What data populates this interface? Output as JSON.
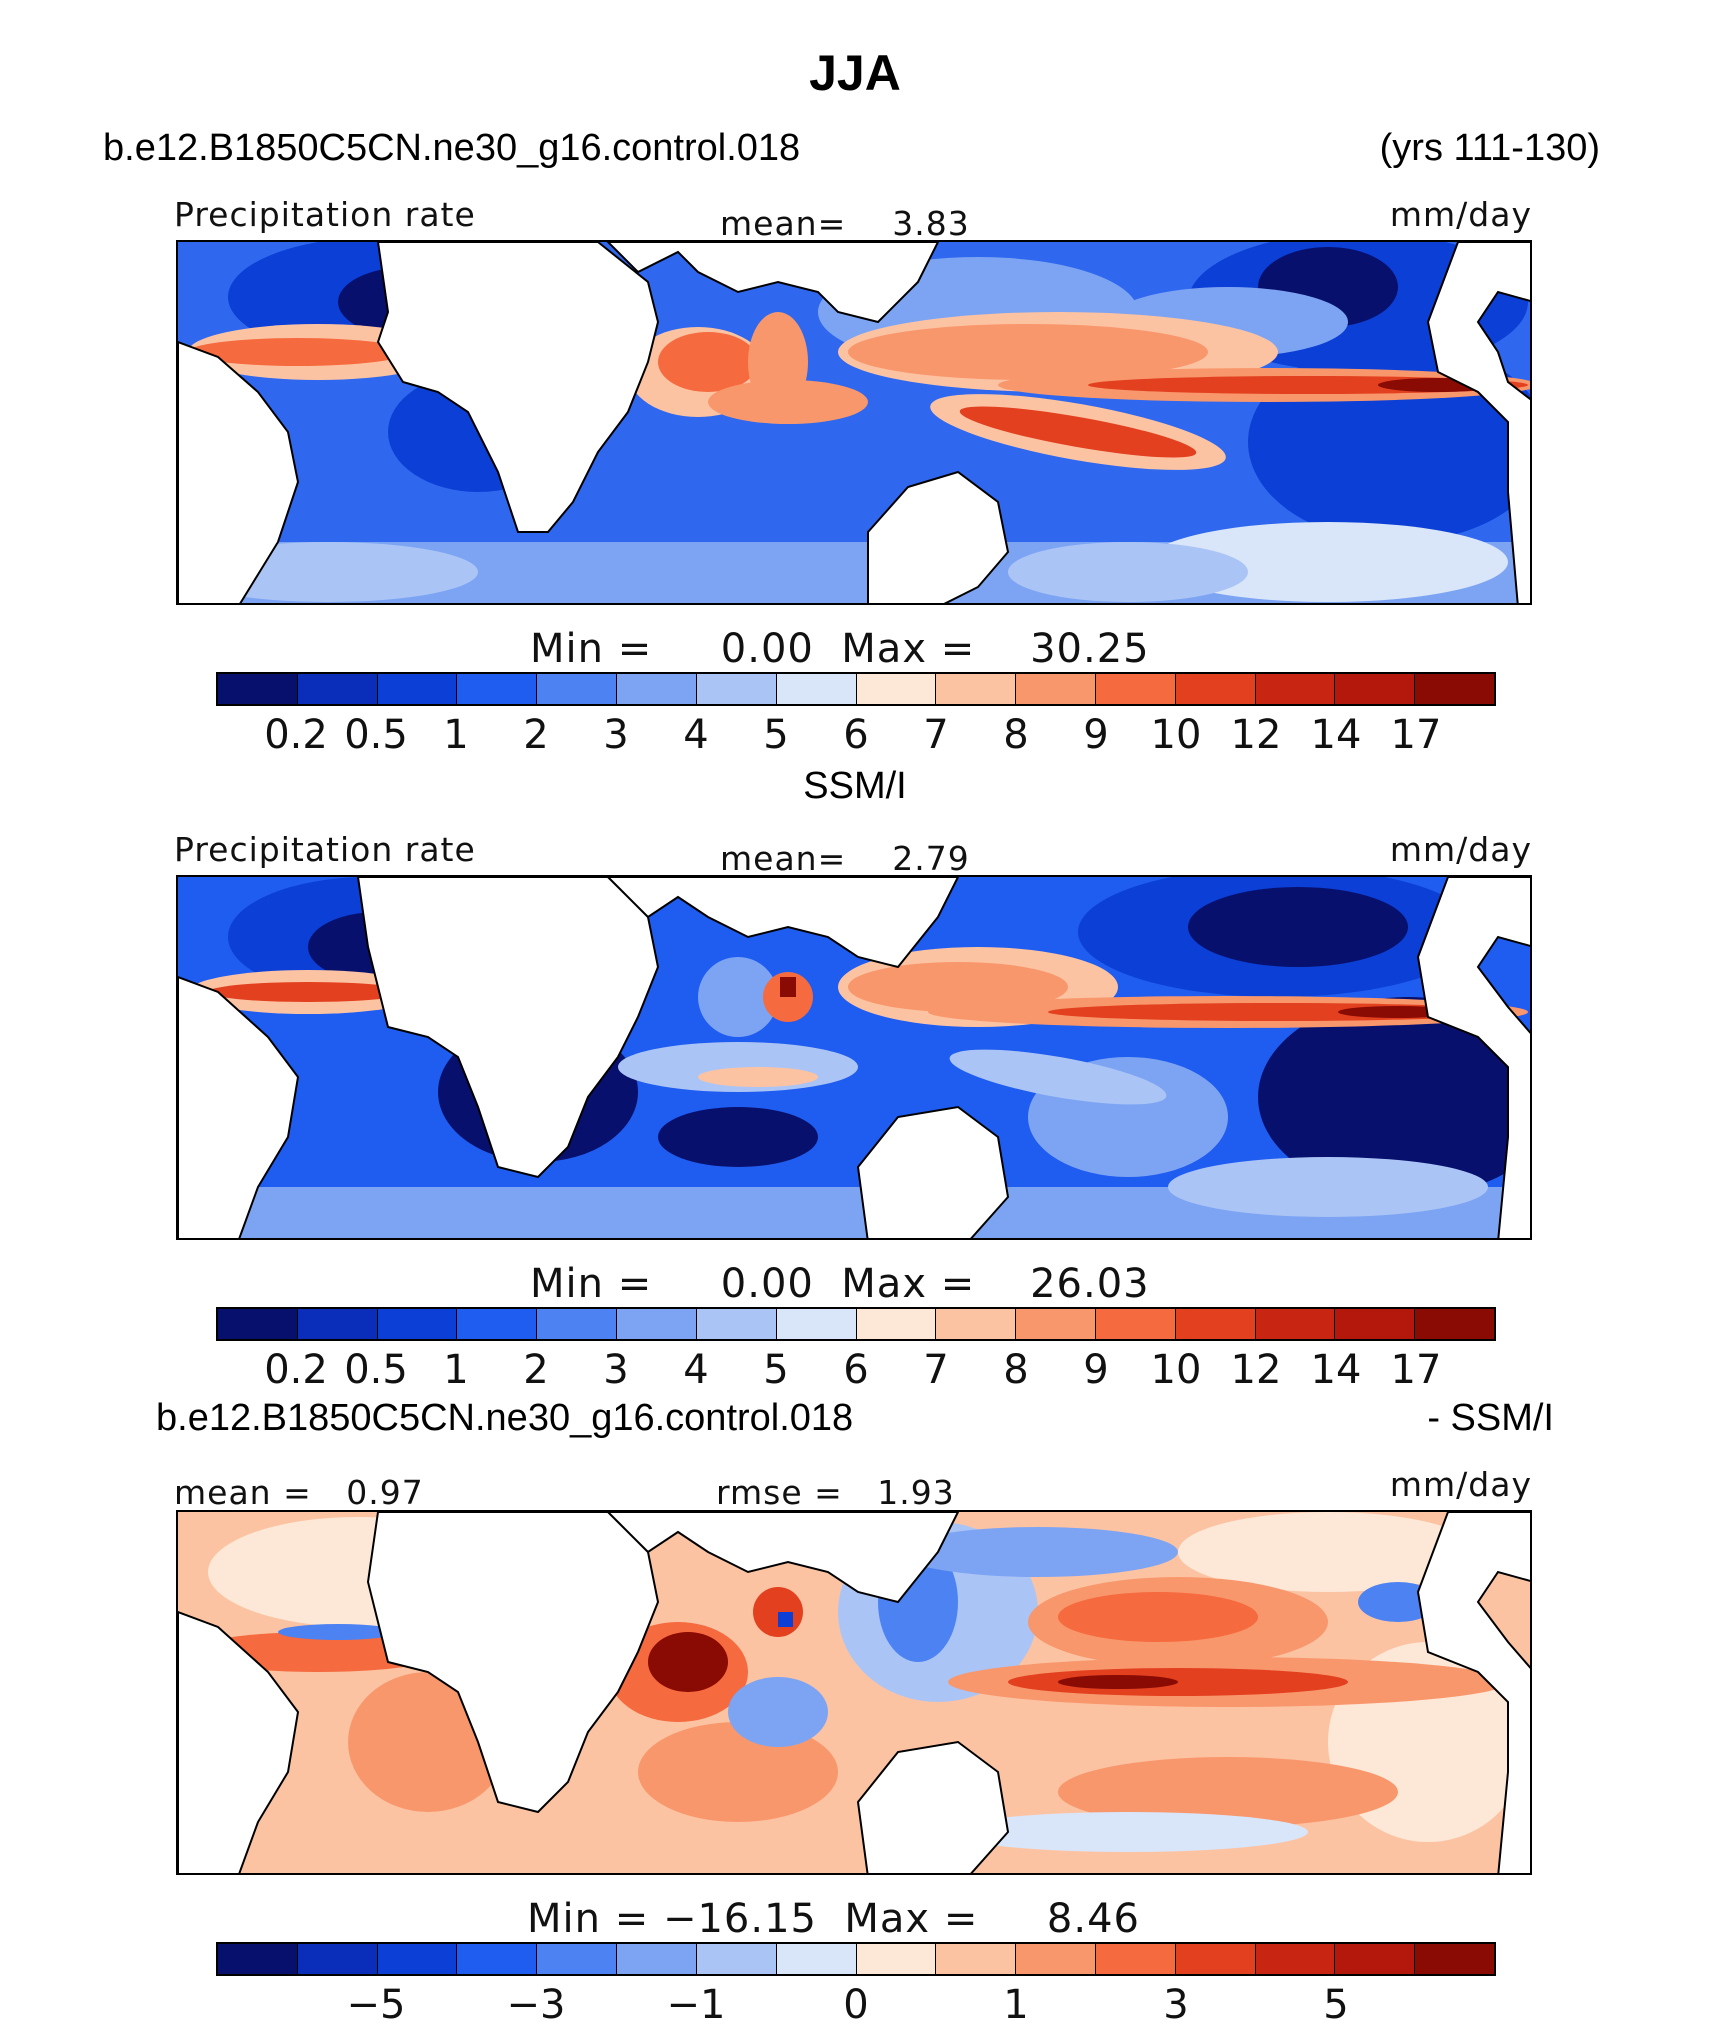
{
  "title": "JJA",
  "case_name": "b.e12.B1850C5CN.ne30_g16.control.018",
  "years": "(yrs 111-130)",
  "obs_title": "SSM/I",
  "diff_case": "b.e12.B1850C5CN.ne30_g16.control.018",
  "diff_suffix": "- SSM/I",
  "panels": [
    {
      "left_label": "Precipitation  rate",
      "center_label": "mean=",
      "center_value": "3.83",
      "units": "mm/day",
      "min_label": "Min  =",
      "min_value": "0.00",
      "max_label": "Max  =",
      "max_value": "30.25"
    },
    {
      "left_label": "Precipitation  rate",
      "center_label": "mean=",
      "center_value": "2.79",
      "units": "mm/day",
      "min_label": "Min  =",
      "min_value": "0.00",
      "max_label": "Max  =",
      "max_value": "26.03"
    },
    {
      "left_label": "mean  =",
      "left_value": "0.97",
      "center_label": "rmse  =",
      "center_value": "1.93",
      "units": "mm/day",
      "min_label": "Min  =",
      "min_value": "−16.15",
      "max_label": "Max  =",
      "max_value": "8.46"
    }
  ],
  "colorbar_colors": [
    "#08106e",
    "#0a2dba",
    "#0b3fd6",
    "#1f5cf0",
    "#4d82f2",
    "#7da4f3",
    "#abc4f6",
    "#d9e6f9",
    "#fde7d6",
    "#fcc3a3",
    "#f9976c",
    "#f56a3e",
    "#e2401f",
    "#c82612",
    "#b4180c",
    "#8a0a04"
  ],
  "precip_ticks": [
    "0.2",
    "0.5",
    "1",
    "2",
    "3",
    "4",
    "5",
    "6",
    "7",
    "8",
    "9",
    "10",
    "12",
    "14",
    "17"
  ],
  "diff_ticks": [
    "−5",
    "−3",
    "−1",
    "0",
    "1",
    "3",
    "5"
  ]
}
